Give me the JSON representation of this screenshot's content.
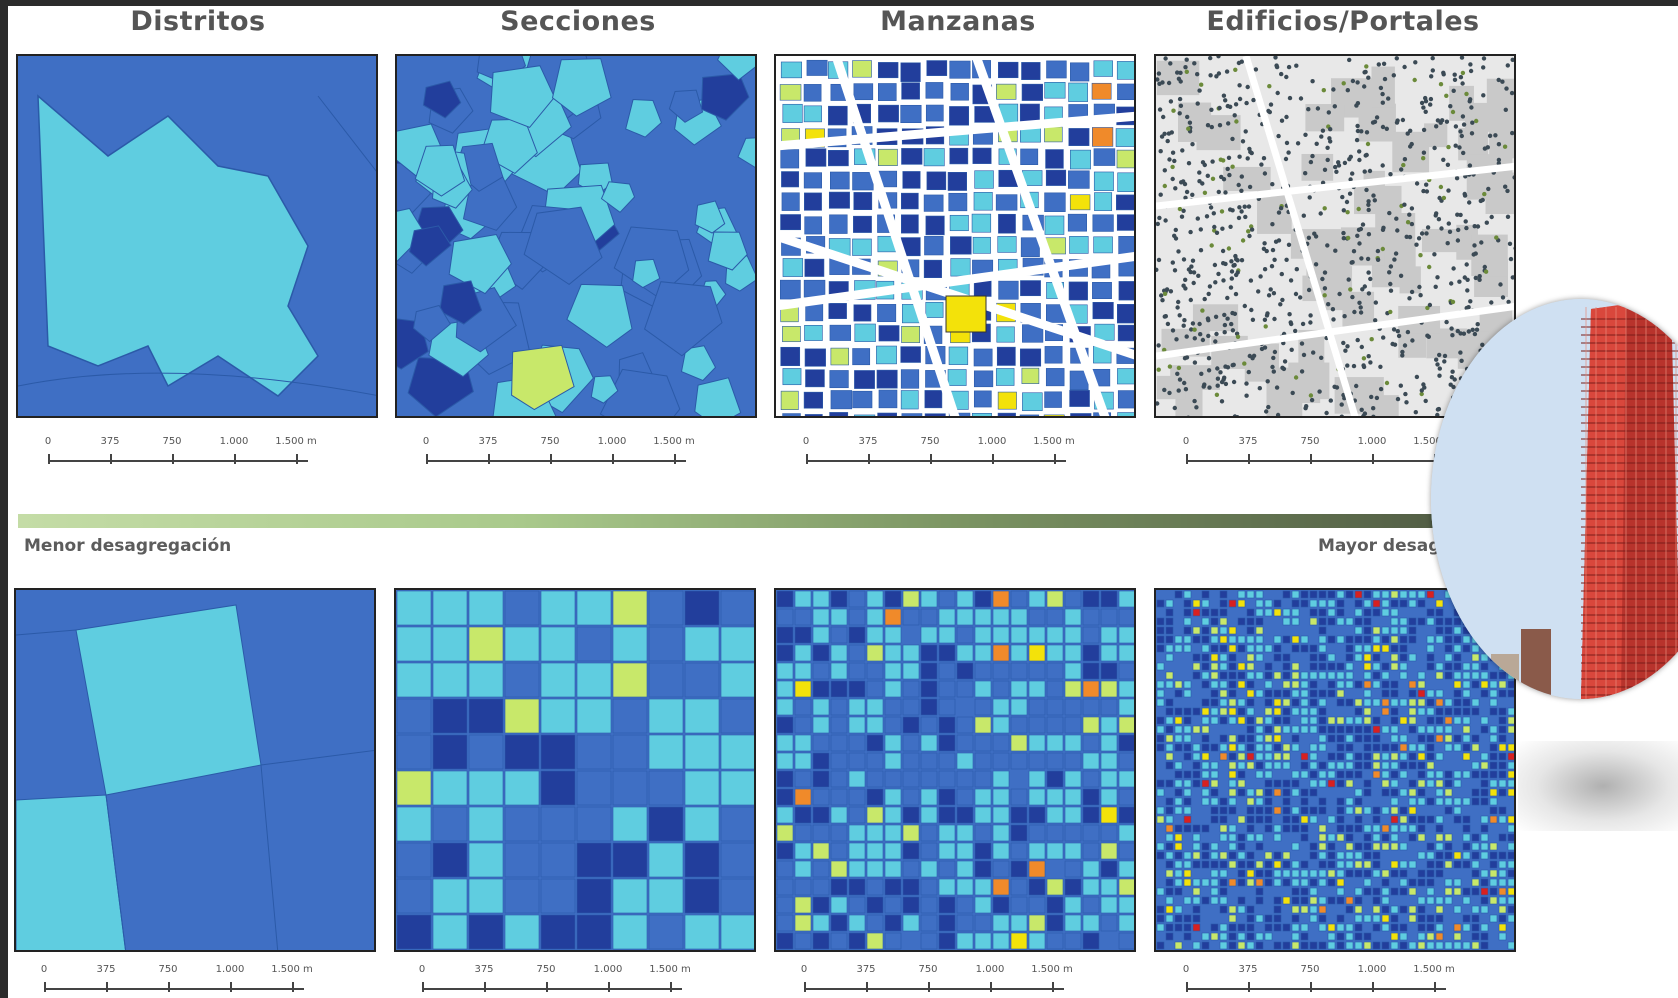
{
  "columns": [
    {
      "title": "Distritos"
    },
    {
      "title": "Secciones"
    },
    {
      "title": "Manzanas"
    },
    {
      "title": "Edificios/Portales"
    }
  ],
  "scale_labels": [
    "0",
    "375",
    "750",
    "1.000",
    "1.500 m"
  ],
  "gradient": {
    "left_label": "Menor desagregación",
    "right_label": "Mayor desag"
  },
  "colors": {
    "base": "#3f6fc4",
    "dark": "#223e9c",
    "cyan": "#5fcde0",
    "lime": "#c8e86a",
    "yellow": "#f3e20a",
    "orange": "#f08a2a",
    "red": "#d82020",
    "street": "#ffffff"
  },
  "photo": {
    "subject": "red-glass-skyscraper"
  }
}
